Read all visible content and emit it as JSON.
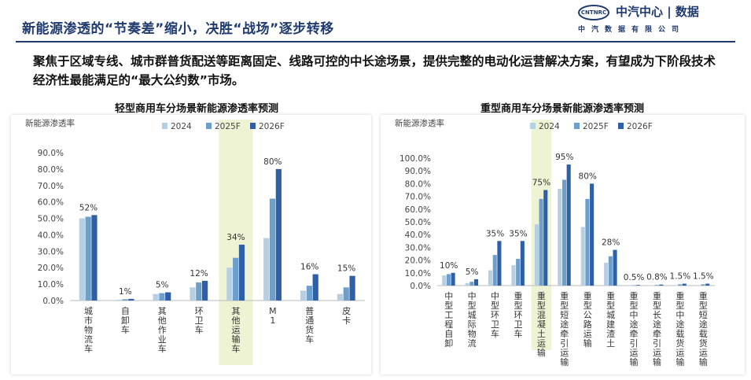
{
  "header": {
    "title": "新能源渗透的“节奏差”缩小，决胜“战场”逐步转移",
    "brand_logo": "CNTNRC",
    "brand_name": "中汽中心 | 数据",
    "brand_sub": "中汽数据有限公司"
  },
  "lead_text": "聚焦于区域专线、城市群普货配送等距离固定、线路可控的中长途场景，提供完整的电动化运营解决方案，有望成为下阶段技术经济性最能满足的“最大公约数”市场。",
  "colors": {
    "y2024": "#b7cfe2",
    "y2025": "#6d9fcd",
    "y2026": "#2f5fa6",
    "highlight": "#eef3d4",
    "title": "#1f3a6e"
  },
  "chart_data": [
    {
      "type": "bar",
      "title": "轻型商用车分场景新能源渗透率预测",
      "ylabel": "新能源渗透率",
      "ylim": [
        0,
        90
      ],
      "yticks": [
        "0.0%",
        "10.0%",
        "20.0%",
        "30.0%",
        "40.0%",
        "50.0%",
        "60.0%",
        "70.0%",
        "80.0%",
        "90.0%"
      ],
      "categories": [
        "城市物流车",
        "自卸车",
        "其他作业车",
        "环卫车",
        "其他运输车",
        "M1",
        "普通货车",
        "皮卡"
      ],
      "series": [
        {
          "name": "2024",
          "values": [
            50,
            0.5,
            4,
            8,
            20,
            38,
            6,
            4
          ]
        },
        {
          "name": "2025F",
          "values": [
            51,
            0.8,
            4.5,
            11,
            26,
            62,
            9,
            8
          ]
        },
        {
          "name": "2026F",
          "values": [
            52,
            1,
            5,
            12,
            34,
            80,
            16,
            15
          ]
        }
      ],
      "data_labels": [
        "52%",
        "1%",
        "5%",
        "12%",
        "34%",
        "80%",
        "16%",
        "15%"
      ],
      "highlight_categories": [
        "其他运输车"
      ]
    },
    {
      "type": "bar",
      "title": "重型商用车分场景新能源渗透率预测",
      "ylabel": "新能源渗透率",
      "ylim": [
        0,
        100
      ],
      "yticks": [
        "0.0%",
        "10.0%",
        "20.0%",
        "30.0%",
        "40.0%",
        "50.0%",
        "60.0%",
        "70.0%",
        "80.0%",
        "90.0%",
        "100.0%"
      ],
      "categories": [
        "中型工程自卸",
        "中型城际物流",
        "中型环卫车",
        "重型环卫车",
        "重型混凝土运输",
        "重型短途牵引运输",
        "重型公路运输",
        "重型城建渣土",
        "重型中途牵引运输",
        "重型长途牵引运输",
        "重型中途载货运输",
        "重型短途载货运输"
      ],
      "series": [
        {
          "name": "2024",
          "values": [
            8,
            2,
            12,
            16,
            48,
            76,
            46,
            18,
            0.1,
            0.2,
            0.3,
            0.3
          ]
        },
        {
          "name": "2025F",
          "values": [
            9,
            3,
            24,
            21,
            68,
            83,
            68,
            23,
            0.3,
            0.5,
            1,
            1
          ]
        },
        {
          "name": "2026F",
          "values": [
            10,
            5,
            35,
            35,
            75,
            95,
            80,
            28,
            0.5,
            0.8,
            1.5,
            1.5
          ]
        }
      ],
      "data_labels": [
        "10%",
        "5%",
        "35%",
        "35%",
        "75%",
        "95%",
        "80%",
        "28%",
        "0.5%",
        "0.8%",
        "1.5%",
        "1.5%"
      ],
      "highlight_categories": [
        "重型混凝土运输"
      ]
    }
  ]
}
